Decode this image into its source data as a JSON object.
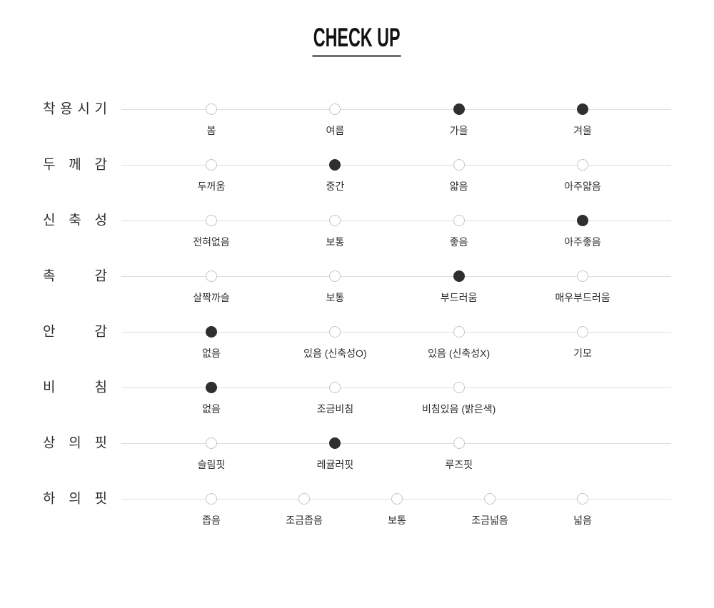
{
  "title": "CHECK UP",
  "colors": {
    "text": "#2e2e2e",
    "line": "#dddddd",
    "dot_border": "#c6c6c6",
    "dot_filled": "#2f2f2f",
    "title_underline": "#6e6e6e"
  },
  "chart_data": {
    "type": "table",
    "title": "CHECK UP",
    "legend_note": "filled dot = selected level, hollow dot = unselected",
    "rows": [
      {
        "category": "착용시기",
        "options": [
          "봄",
          "여름",
          "가을",
          "겨울"
        ],
        "selected": [
          "가을",
          "겨울"
        ]
      },
      {
        "category": "두께감",
        "options": [
          "두꺼움",
          "중간",
          "얇음",
          "아주얇음"
        ],
        "selected": [
          "중간"
        ]
      },
      {
        "category": "신축성",
        "options": [
          "전혀없음",
          "보통",
          "좋음",
          "아주좋음"
        ],
        "selected": [
          "아주좋음"
        ]
      },
      {
        "category": "촉감",
        "options": [
          "살짝까슬",
          "보통",
          "부드러움",
          "매우부드러움"
        ],
        "selected": [
          "부드러움"
        ]
      },
      {
        "category": "안감",
        "options": [
          "없음",
          "있음 (신축성O)",
          "있음 (신축성X)",
          "기모"
        ],
        "selected": [
          "없음"
        ]
      },
      {
        "category": "비침",
        "options": [
          "없음",
          "조금비침",
          "비침있음 (밝은색)"
        ],
        "selected": [
          "없음"
        ]
      },
      {
        "category": "상의핏",
        "options": [
          "슬림핏",
          "레귤러핏",
          "루즈핏"
        ],
        "selected": [
          "레귤러핏"
        ]
      },
      {
        "category": "하의핏",
        "options": [
          "좁음",
          "조금좁음",
          "보통",
          "조금넓음",
          "넓음"
        ],
        "selected": []
      }
    ]
  }
}
